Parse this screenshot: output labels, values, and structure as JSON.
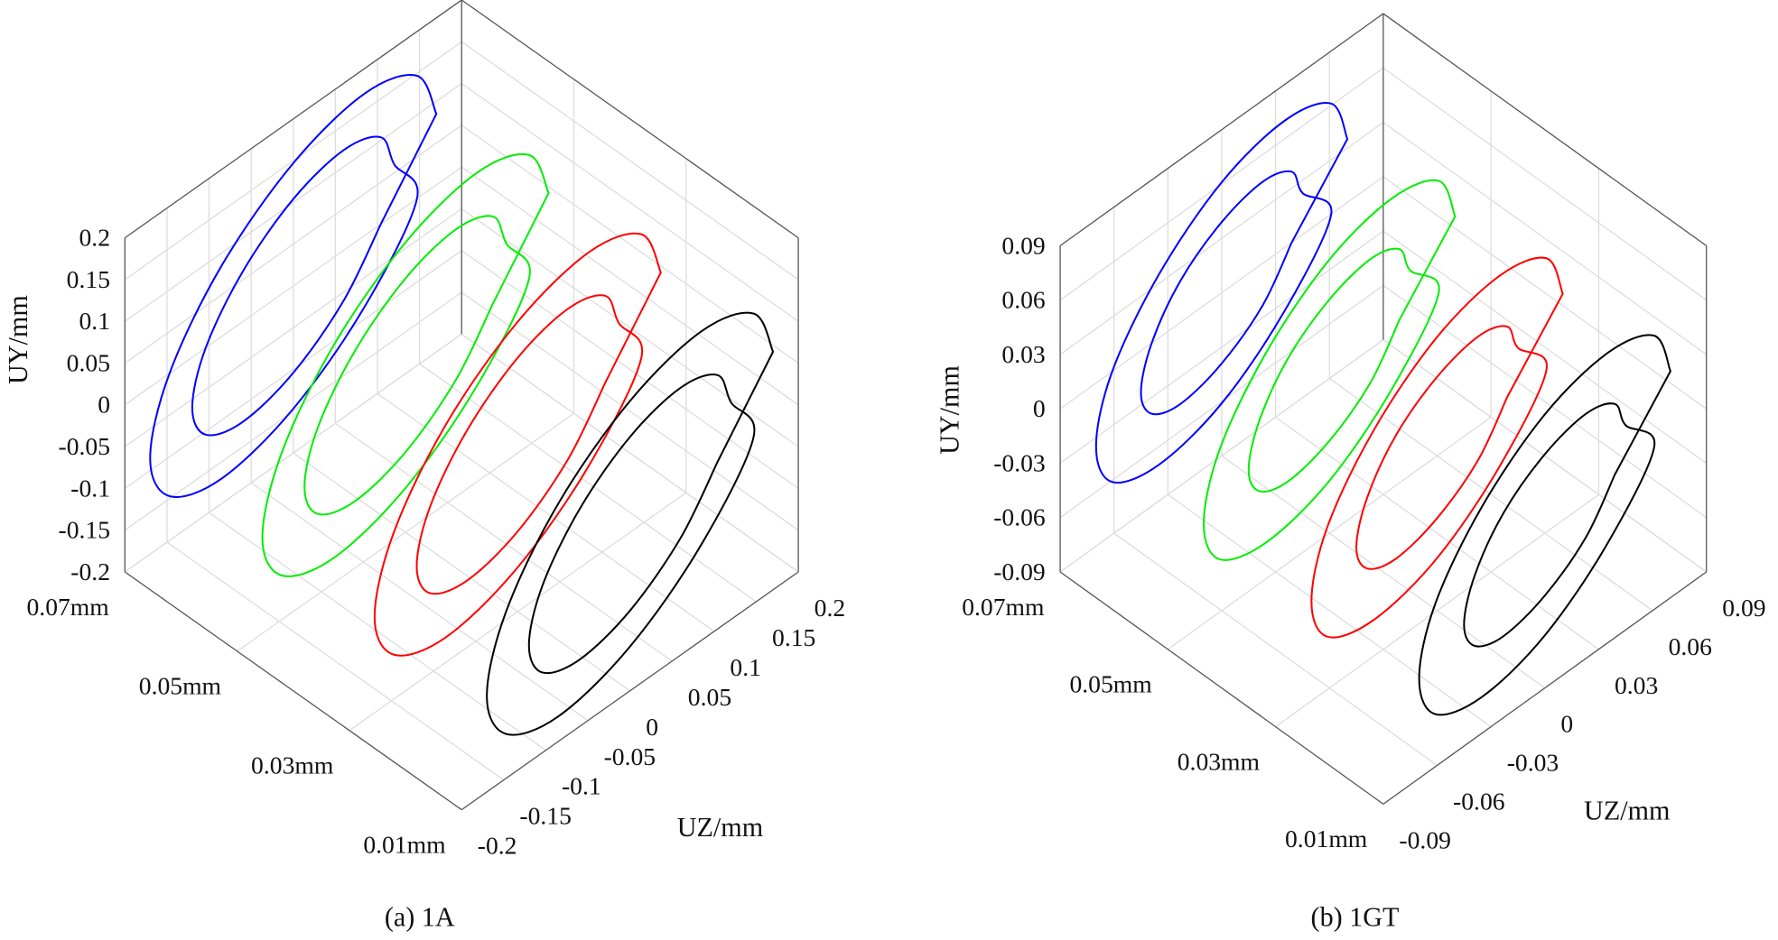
{
  "chart_data": [
    {
      "type": "line3d",
      "caption": "(a) 1A",
      "ylabel": "UY/mm",
      "zlabel": "UZ/mm",
      "xlim": [
        0.07,
        0.01
      ],
      "xticks": [
        {
          "value": 0.07,
          "label": "0.07mm"
        },
        {
          "value": 0.05,
          "label": "0.05mm"
        },
        {
          "value": 0.03,
          "label": "0.03mm"
        },
        {
          "value": 0.01,
          "label": "0.01mm"
        }
      ],
      "zlim": [
        -0.2,
        0.2
      ],
      "zticks": [
        -0.2,
        -0.15,
        -0.1,
        -0.05,
        0,
        0.05,
        0.1,
        0.15,
        0.2
      ],
      "ylim": [
        -0.2,
        0.2
      ],
      "yticks": [
        -0.2,
        -0.15,
        -0.1,
        -0.05,
        0,
        0.05,
        0.1,
        0.15,
        0.2
      ],
      "grid": true,
      "series": [
        {
          "color": "#0000ff",
          "x": 0.07,
          "z": [
            0.17,
            0.147,
            0.085,
            0,
            -0.085,
            -0.147,
            -0.17,
            -0.147,
            -0.085,
            0,
            0.085,
            0.147,
            0.12,
            0.104,
            0.06,
            0,
            -0.06,
            -0.104,
            -0.12,
            -0.104,
            -0.06,
            0,
            0.06,
            0.104
          ],
          "y": [
            0.085,
            0.147,
            0.17,
            0.147,
            0.085,
            0,
            -0.085,
            -0.147,
            -0.17,
            -0.147,
            -0.085,
            0,
            0.06,
            0.104,
            0.12,
            0.104,
            0.06,
            0,
            -0.06,
            -0.104,
            -0.12,
            -0.104,
            -0.06,
            0
          ]
        },
        {
          "color": "#00ee00",
          "x": 0.05,
          "z": [
            0.17,
            0.147,
            0.085,
            0,
            -0.085,
            -0.147,
            -0.17,
            -0.147,
            -0.085,
            0,
            0.085,
            0.147,
            0.12,
            0.104,
            0.06,
            0,
            -0.06,
            -0.104,
            -0.12,
            -0.104,
            -0.06,
            0,
            0.06,
            0.104
          ],
          "y": [
            0.085,
            0.147,
            0.17,
            0.147,
            0.085,
            0,
            -0.085,
            -0.147,
            -0.17,
            -0.147,
            -0.085,
            0,
            0.06,
            0.104,
            0.12,
            0.104,
            0.06,
            0,
            -0.06,
            -0.104,
            -0.12,
            -0.104,
            -0.06,
            0
          ]
        },
        {
          "color": "#ff0000",
          "x": 0.03,
          "z": [
            0.17,
            0.147,
            0.085,
            0,
            -0.085,
            -0.147,
            -0.17,
            -0.147,
            -0.085,
            0,
            0.085,
            0.147,
            0.12,
            0.104,
            0.06,
            0,
            -0.06,
            -0.104,
            -0.12,
            -0.104,
            -0.06,
            0,
            0.06,
            0.104
          ],
          "y": [
            0.085,
            0.147,
            0.17,
            0.147,
            0.085,
            0,
            -0.085,
            -0.147,
            -0.17,
            -0.147,
            -0.085,
            0,
            0.06,
            0.104,
            0.12,
            0.104,
            0.06,
            0,
            -0.06,
            -0.104,
            -0.12,
            -0.104,
            -0.06,
            0
          ]
        },
        {
          "color": "#000000",
          "x": 0.01,
          "z": [
            0.17,
            0.147,
            0.085,
            0,
            -0.085,
            -0.147,
            -0.17,
            -0.147,
            -0.085,
            0,
            0.085,
            0.147,
            0.12,
            0.104,
            0.06,
            0,
            -0.06,
            -0.104,
            -0.12,
            -0.104,
            -0.06,
            0,
            0.06,
            0.104
          ],
          "y": [
            0.085,
            0.147,
            0.17,
            0.147,
            0.085,
            0,
            -0.085,
            -0.147,
            -0.17,
            -0.147,
            -0.085,
            0,
            0.06,
            0.104,
            0.12,
            0.104,
            0.06,
            0,
            -0.06,
            -0.104,
            -0.12,
            -0.104,
            -0.06,
            0
          ]
        }
      ]
    },
    {
      "type": "line3d",
      "caption": "(b) 1GT",
      "ylabel": "UY/mm",
      "zlabel": "UZ/mm",
      "xlim": [
        0.07,
        0.01
      ],
      "xticks": [
        {
          "value": 0.07,
          "label": "0.07mm"
        },
        {
          "value": 0.05,
          "label": "0.05mm"
        },
        {
          "value": 0.03,
          "label": "0.03mm"
        },
        {
          "value": 0.01,
          "label": "0.01mm"
        }
      ],
      "zlim": [
        -0.09,
        0.09
      ],
      "zticks": [
        -0.09,
        -0.06,
        -0.03,
        0,
        0.03,
        0.06,
        0.09
      ],
      "ylim": [
        -0.09,
        0.09
      ],
      "yticks": [
        -0.09,
        -0.06,
        -0.03,
        0,
        0.03,
        0.06,
        0.09
      ],
      "grid": true,
      "series": [
        {
          "color": "#0000ff",
          "x": 0.07,
          "z": [
            0.07,
            0.061,
            0.035,
            0,
            -0.035,
            -0.061,
            -0.07,
            -0.061,
            -0.035,
            0,
            0.035,
            0.061,
            0.045,
            0.039,
            0.023,
            0,
            -0.023,
            -0.039,
            -0.045,
            -0.039,
            -0.023,
            0,
            0.023,
            0.039
          ],
          "y": [
            0.035,
            0.061,
            0.07,
            0.061,
            0.035,
            0,
            -0.035,
            -0.061,
            -0.07,
            -0.061,
            -0.035,
            0,
            0.023,
            0.039,
            0.045,
            0.039,
            0.023,
            0,
            -0.023,
            -0.039,
            -0.045,
            -0.039,
            -0.023,
            0
          ]
        },
        {
          "color": "#00ee00",
          "x": 0.05,
          "z": [
            0.07,
            0.061,
            0.035,
            0,
            -0.035,
            -0.061,
            -0.07,
            -0.061,
            -0.035,
            0,
            0.035,
            0.061,
            0.045,
            0.039,
            0.023,
            0,
            -0.023,
            -0.039,
            -0.045,
            -0.039,
            -0.023,
            0,
            0.023,
            0.039
          ],
          "y": [
            0.035,
            0.061,
            0.07,
            0.061,
            0.035,
            0,
            -0.035,
            -0.061,
            -0.07,
            -0.061,
            -0.035,
            0,
            0.023,
            0.039,
            0.045,
            0.039,
            0.023,
            0,
            -0.023,
            -0.039,
            -0.045,
            -0.039,
            -0.023,
            0
          ]
        },
        {
          "color": "#ff0000",
          "x": 0.03,
          "z": [
            0.07,
            0.061,
            0.035,
            0,
            -0.035,
            -0.061,
            -0.07,
            -0.061,
            -0.035,
            0,
            0.035,
            0.061,
            0.045,
            0.039,
            0.023,
            0,
            -0.023,
            -0.039,
            -0.045,
            -0.039,
            -0.023,
            0,
            0.023,
            0.039
          ],
          "y": [
            0.035,
            0.061,
            0.07,
            0.061,
            0.035,
            0,
            -0.035,
            -0.061,
            -0.07,
            -0.061,
            -0.035,
            0,
            0.023,
            0.039,
            0.045,
            0.039,
            0.023,
            0,
            -0.023,
            -0.039,
            -0.045,
            -0.039,
            -0.023,
            0
          ]
        },
        {
          "color": "#000000",
          "x": 0.01,
          "z": [
            0.07,
            0.061,
            0.035,
            0,
            -0.035,
            -0.061,
            -0.07,
            -0.061,
            -0.035,
            0,
            0.035,
            0.061,
            0.045,
            0.039,
            0.023,
            0,
            -0.023,
            -0.039,
            -0.045,
            -0.039,
            -0.023,
            0,
            0.023,
            0.039
          ],
          "y": [
            0.035,
            0.061,
            0.07,
            0.061,
            0.035,
            0,
            -0.035,
            -0.061,
            -0.07,
            -0.061,
            -0.035,
            0,
            0.023,
            0.039,
            0.045,
            0.039,
            0.023,
            0,
            -0.023,
            -0.039,
            -0.045,
            -0.039,
            -0.023,
            0
          ]
        }
      ]
    }
  ]
}
